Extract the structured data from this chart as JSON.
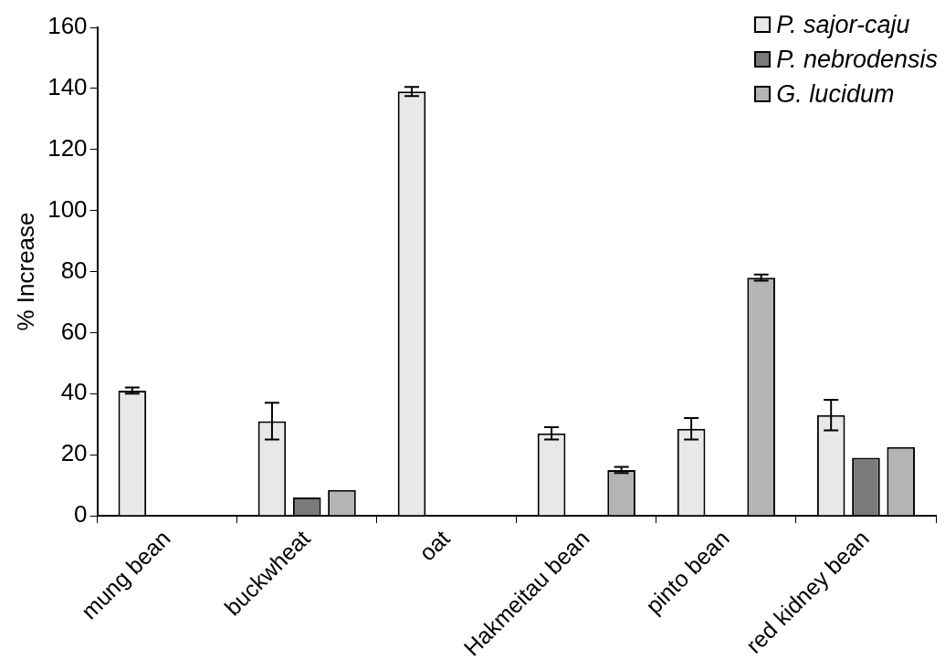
{
  "chart_data": {
    "type": "bar",
    "ylabel": "% Increase",
    "categories": [
      "mung bean",
      "buckwheat",
      "oat",
      "Hakmeitau bean",
      "pinto bean",
      "red kidney bean"
    ],
    "series": [
      {
        "name": "P. sajor-caju",
        "color": "#e8e8e8",
        "values": [
          41,
          31,
          139,
          27,
          28.5,
          33
        ],
        "errors": [
          1,
          6,
          1.5,
          2,
          3.5,
          5
        ]
      },
      {
        "name": "P. nebrodensis",
        "color": "#7a7a7a",
        "values": [
          null,
          6,
          null,
          null,
          null,
          19
        ],
        "errors": [
          null,
          null,
          null,
          null,
          null,
          null
        ]
      },
      {
        "name": "G. lucidum",
        "color": "#b4b4b4",
        "values": [
          null,
          8.5,
          null,
          15,
          78,
          22.5
        ],
        "errors": [
          null,
          null,
          null,
          1,
          1,
          null
        ]
      }
    ],
    "ylim": [
      0,
      160
    ],
    "yticks": [
      0,
      20,
      40,
      60,
      80,
      100,
      120,
      140,
      160
    ],
    "grid": false,
    "legend": "top right"
  }
}
